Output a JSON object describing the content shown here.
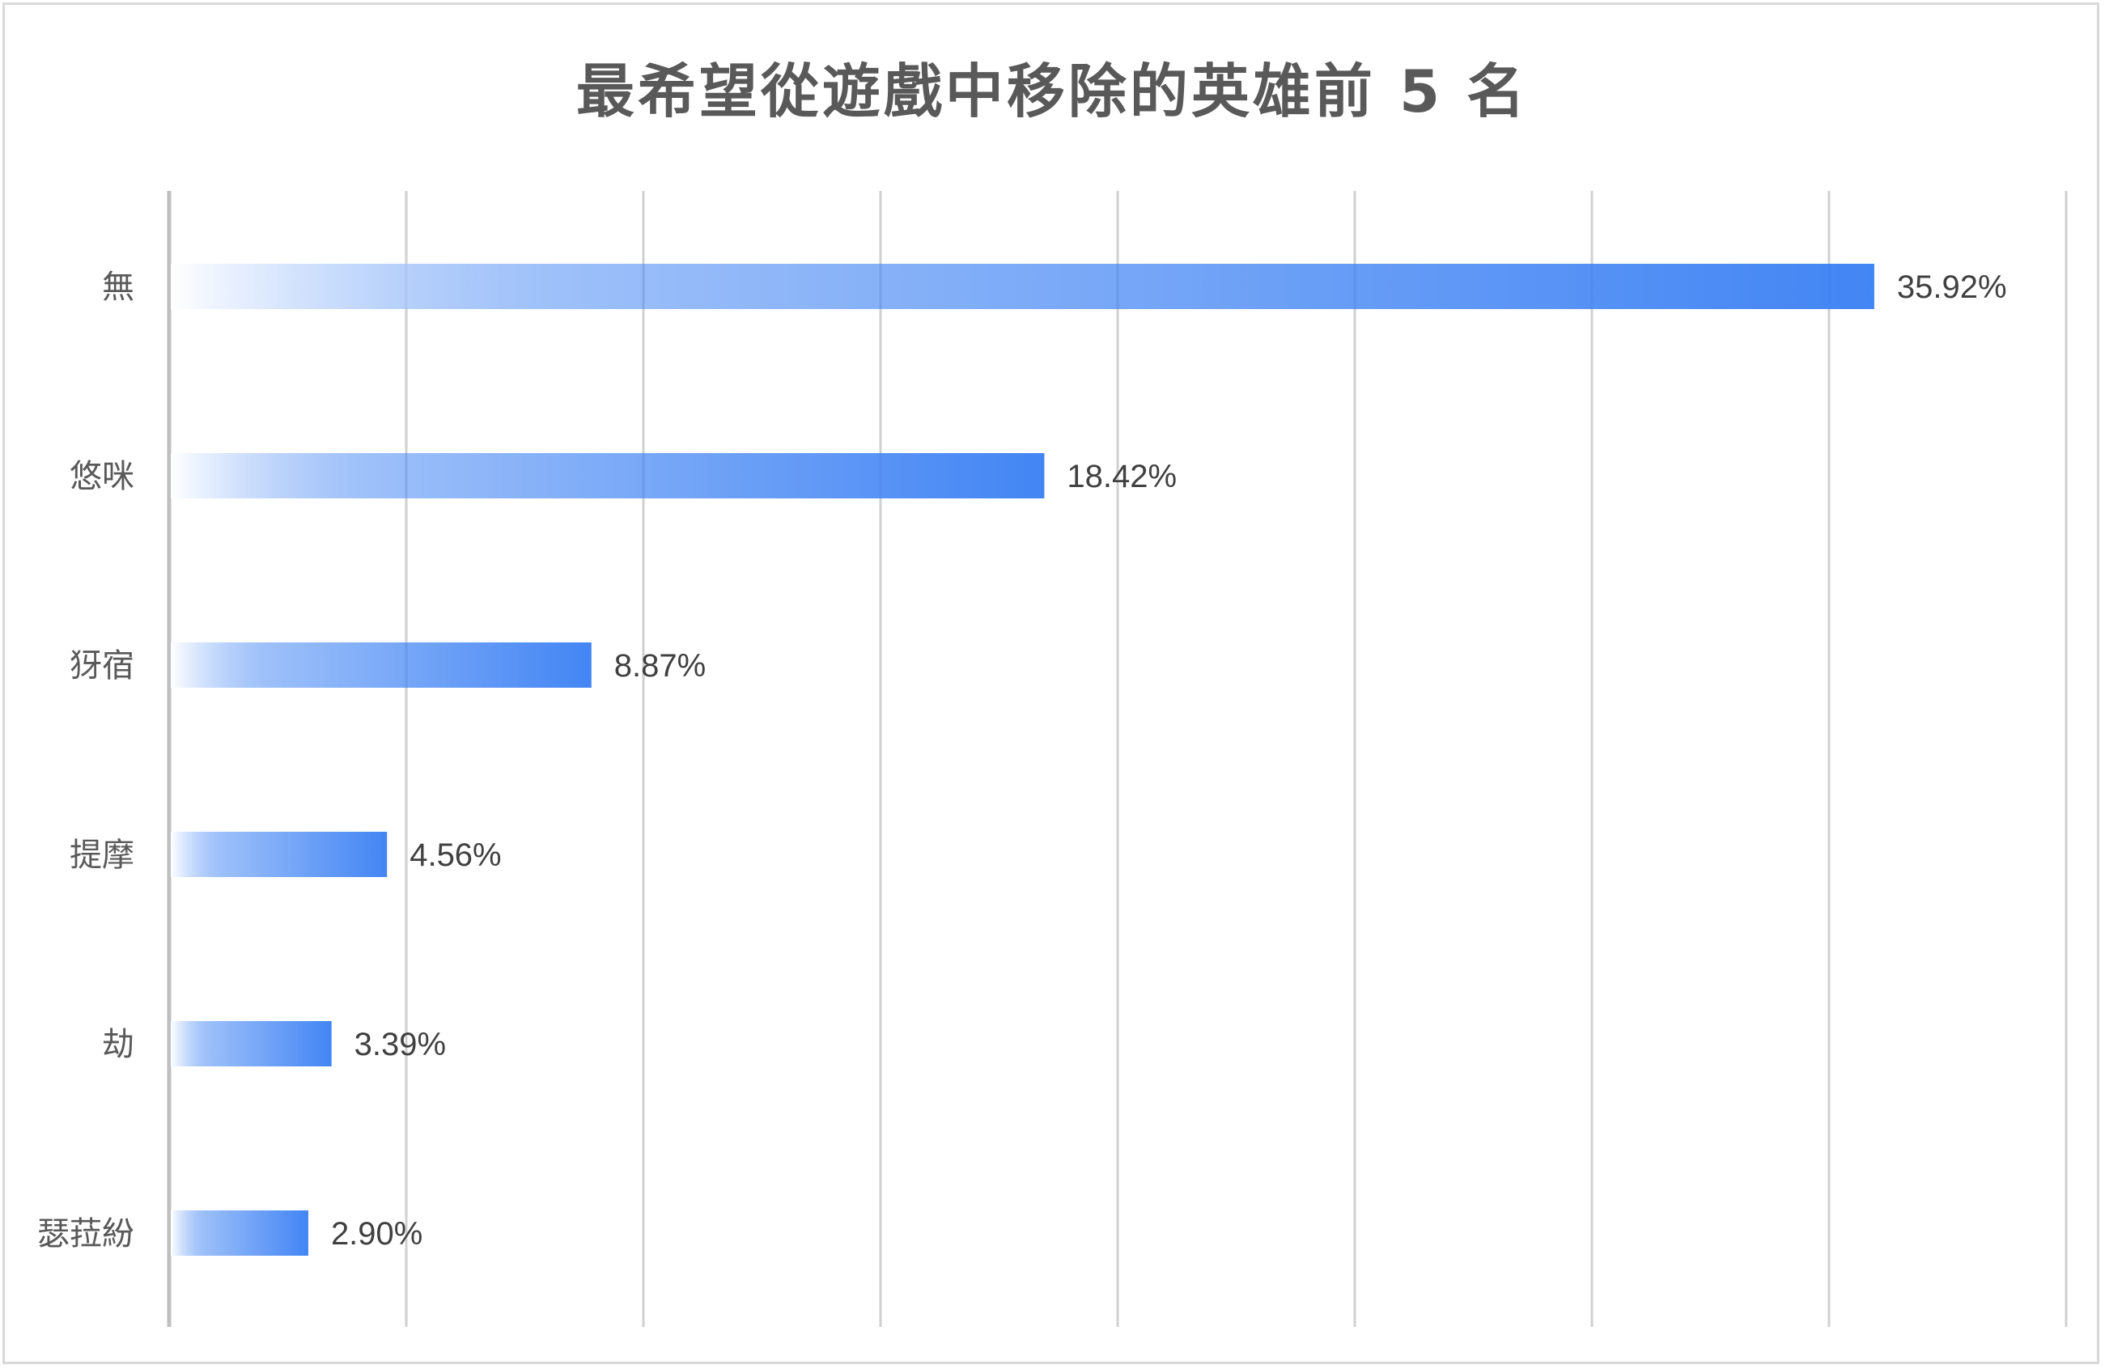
{
  "chart_data": {
    "type": "bar",
    "orientation": "horizontal",
    "title": "最希望從遊戲中移除的英雄前 5 名",
    "categories": [
      "無",
      "悠咪",
      "犽宿",
      "提摩",
      "劫",
      "瑟菈紛"
    ],
    "values": [
      35.92,
      18.42,
      8.87,
      4.56,
      3.39,
      2.9
    ],
    "value_labels": [
      "35.92%",
      "18.42%",
      "8.87%",
      "4.56%",
      "3.39%",
      "2.90%"
    ],
    "unit": "%",
    "xlim": [
      0,
      40
    ],
    "grid": true,
    "legend": "none",
    "colors": {
      "bar": "#4285f4",
      "bar_fade": "#ffffff",
      "grid": "#d0d0d0",
      "axis": "#bfbfbf"
    }
  }
}
